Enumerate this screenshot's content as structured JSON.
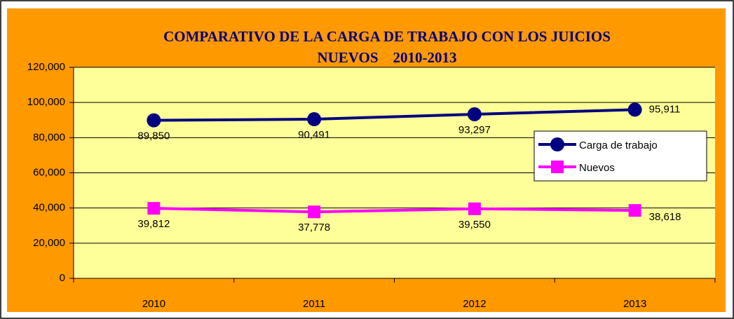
{
  "chart_data": {
    "type": "line",
    "title": [
      "COMPARATIVO DE LA CARGA DE TRABAJO CON LOS JUICIOS",
      "NUEVOS    2010-2013"
    ],
    "categories": [
      "2010",
      "2011",
      "2012",
      "2013"
    ],
    "series": [
      {
        "name": "Carga de trabajo",
        "color": "#000080",
        "marker": "circle",
        "values": [
          89850,
          90491,
          93297,
          95911
        ],
        "value_labels": [
          "89,850",
          "90,491",
          "93,297",
          "95,911"
        ]
      },
      {
        "name": "Nuevos",
        "color": "#ff00ff",
        "marker": "square",
        "values": [
          39812,
          37778,
          39550,
          38618
        ],
        "value_labels": [
          "39,812",
          "37,778",
          "39,550",
          "38,618"
        ]
      }
    ],
    "ylim": [
      0,
      120000
    ],
    "yticks": [
      {
        "value": 0,
        "label": "0"
      },
      {
        "value": 20000,
        "label": "20,000"
      },
      {
        "value": 40000,
        "label": "40,000"
      },
      {
        "value": 60000,
        "label": "60,000"
      },
      {
        "value": 80000,
        "label": "80,000"
      },
      {
        "value": 100000,
        "label": "100,000"
      },
      {
        "value": 120000,
        "label": "120,000"
      }
    ],
    "grid": true,
    "legend": "right"
  }
}
